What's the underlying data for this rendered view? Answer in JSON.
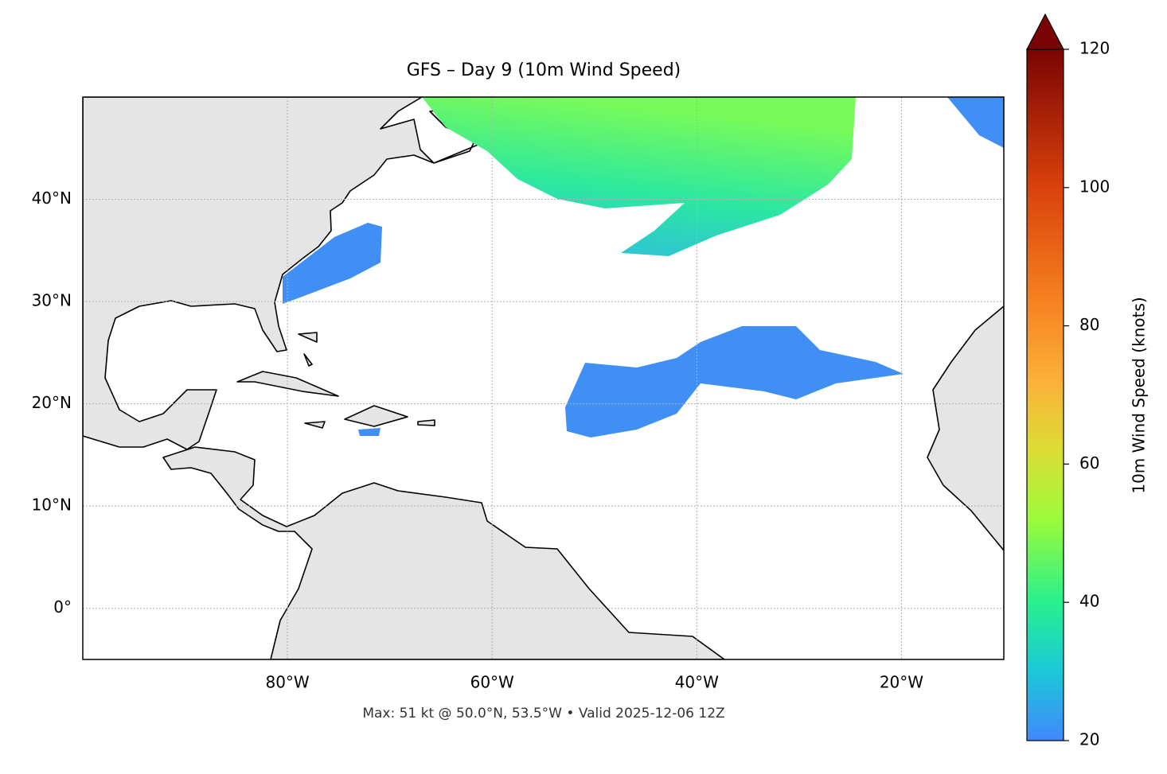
{
  "chart_data": {
    "type": "map",
    "title": "GFS – Day 9 (10m Wind Speed)",
    "footer": "Max: 51 kt @ 50.0°N, 53.5°W • Valid 2025-12-06 12Z",
    "xlim": [
      -100,
      -10
    ],
    "ylim": [
      -5,
      50
    ],
    "xticks": [
      {
        "value": -80,
        "label": "80°W"
      },
      {
        "value": -60,
        "label": "60°W"
      },
      {
        "value": -40,
        "label": "40°W"
      },
      {
        "value": -20,
        "label": "20°W"
      }
    ],
    "yticks": [
      {
        "value": 0,
        "label": "0°"
      },
      {
        "value": 10,
        "label": "10°N"
      },
      {
        "value": 20,
        "label": "20°N"
      },
      {
        "value": 30,
        "label": "30°N"
      },
      {
        "value": 40,
        "label": "40°N"
      }
    ],
    "grid": true,
    "colorbar": {
      "label": "10m Wind Speed (knots)",
      "lim": [
        20,
        120
      ],
      "ticks": [
        20,
        40,
        60,
        80,
        100,
        120
      ]
    }
  }
}
